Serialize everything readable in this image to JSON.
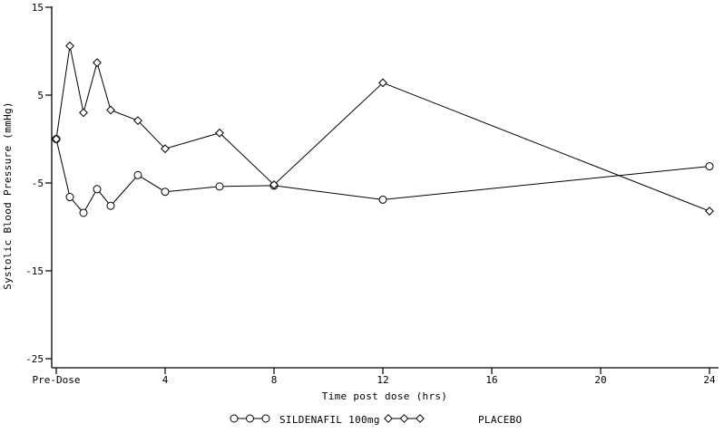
{
  "chart_data": {
    "type": "line",
    "title": "",
    "xlabel": "Time post dose (hrs)",
    "ylabel": "Systolic Blood Pressure (mmHg)",
    "x": [
      0,
      0.5,
      1,
      1.5,
      2,
      3,
      4,
      6,
      8,
      12,
      24
    ],
    "series": [
      {
        "name": "SILDENAFIL 100mg",
        "marker": "circle",
        "values": [
          0.0,
          -6.6,
          -8.4,
          -5.7,
          -7.6,
          -4.1,
          -6.0,
          -5.4,
          -5.3,
          -6.9,
          -3.1
        ]
      },
      {
        "name": "PLACEBO",
        "marker": "diamond",
        "values": [
          0.0,
          10.6,
          3.0,
          8.7,
          3.3,
          2.1,
          -1.1,
          0.7,
          -5.2,
          6.4,
          -8.2
        ]
      }
    ],
    "x_ticks": [
      {
        "value": 0,
        "label": "Pre-Dose"
      },
      {
        "value": 4,
        "label": "4"
      },
      {
        "value": 8,
        "label": "8"
      },
      {
        "value": 12,
        "label": "12"
      },
      {
        "value": 16,
        "label": "16"
      },
      {
        "value": 20,
        "label": "20"
      },
      {
        "value": 24,
        "label": "24"
      }
    ],
    "y_ticks": [
      {
        "value": 15,
        "label": "15"
      },
      {
        "value": 5,
        "label": "5"
      },
      {
        "value": -5,
        "label": "-5"
      },
      {
        "value": -15,
        "label": "-15"
      },
      {
        "value": -25,
        "label": "-25"
      }
    ],
    "xlim": [
      0,
      24
    ],
    "ylim": [
      -25,
      15
    ],
    "grid": false,
    "legend_position": "bottom",
    "line_color": "#000000",
    "axis_color": "#000000",
    "marker_fill": "#ffffff",
    "background": "#ffffff"
  }
}
